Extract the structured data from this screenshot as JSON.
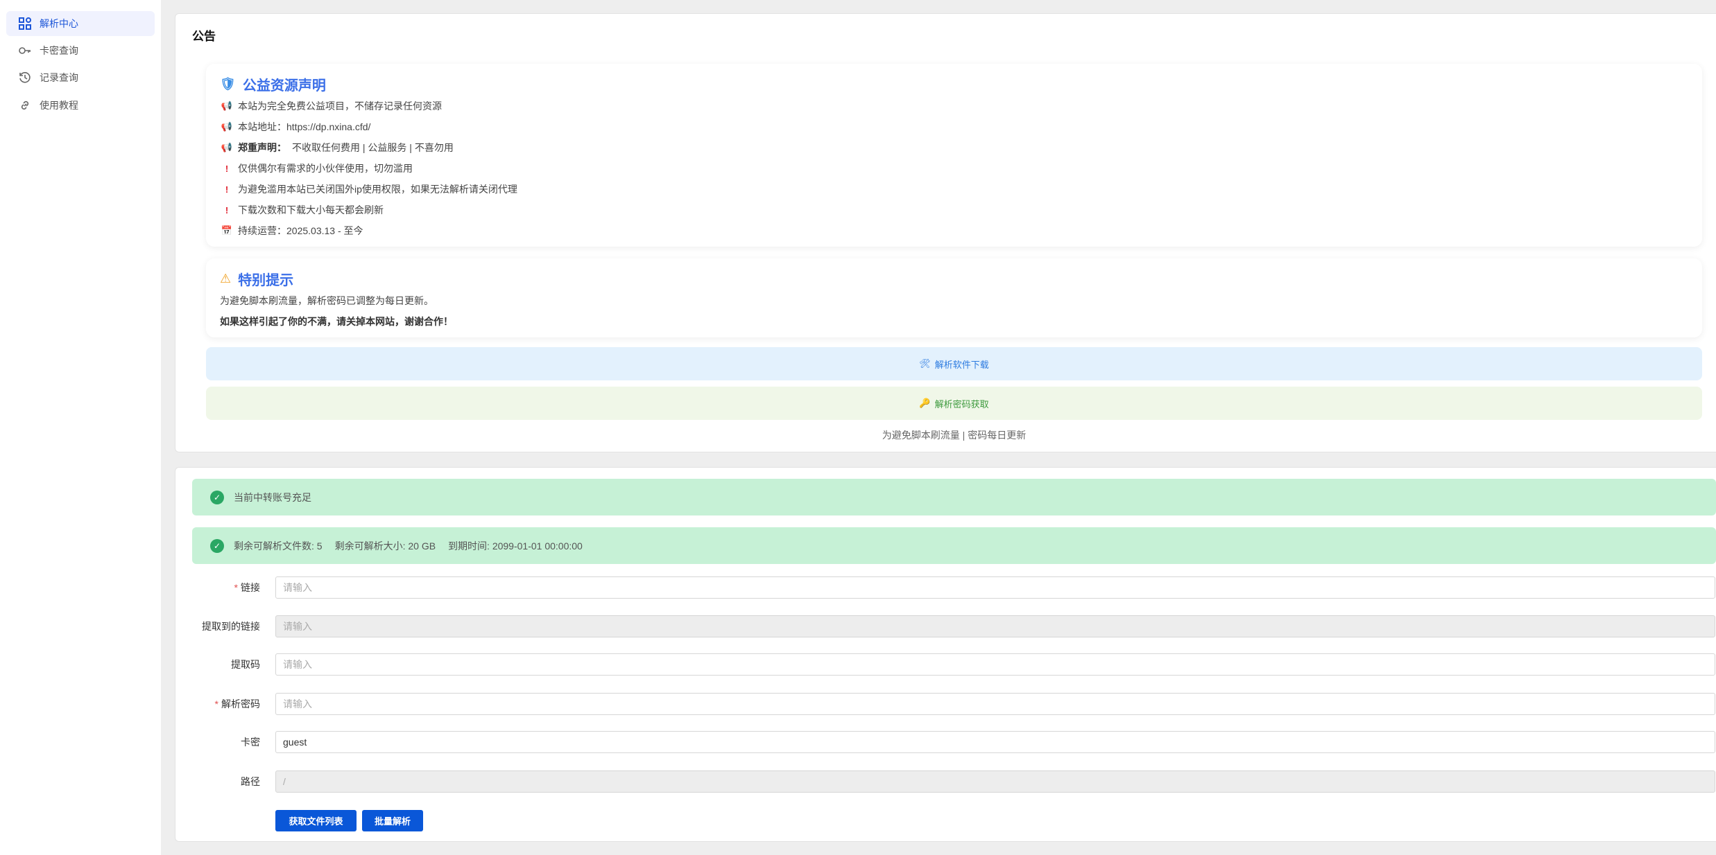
{
  "sidebar": {
    "items": [
      {
        "label": "解析中心",
        "icon": "grid-icon",
        "active": true
      },
      {
        "label": "卡密查询",
        "icon": "key-icon"
      },
      {
        "label": "记录查询",
        "icon": "history-icon"
      },
      {
        "label": "使用教程",
        "icon": "link-icon"
      }
    ]
  },
  "announcement": {
    "title": "公告",
    "notice": {
      "heading": "公益资源声明",
      "lines": [
        {
          "icon": "megaphone-icon",
          "text": "本站为完全免费公益项目，不储存记录任何资源"
        },
        {
          "icon": "megaphone-icon",
          "text": "本站地址：https://dp.nxina.cfd/"
        },
        {
          "icon": "megaphone-icon",
          "bold": "郑重声明：",
          "text": "不收取任何费用 | 公益服务 | 不喜勿用"
        },
        {
          "icon": "exclamation-icon",
          "text": "仅供偶尔有需求的小伙伴使用，切勿滥用"
        },
        {
          "icon": "exclamation-icon",
          "text": "为避免滥用本站已关闭国外ip使用权限，如果无法解析请关闭代理"
        },
        {
          "icon": "exclamation-icon",
          "text": "下载次数和下载大小每天都会刷新"
        },
        {
          "icon": "calendar-icon",
          "text": "持续运营：2025.03.13 - 至今"
        }
      ]
    },
    "special": {
      "heading": "特别提示",
      "line1": "为避免脚本刷流量，解析密码已调整为每日更新。",
      "line2": "如果这样引起了你的不满，请关掉本网站，谢谢合作！"
    },
    "download_button": "解析软件下载",
    "password_button": "解析密码获取",
    "footnote": "为避免脚本刷流量 | 密码每日更新"
  },
  "status": {
    "alert1": "当前中转账号充足",
    "remaining_files": "剩余可解析文件数: 5",
    "remaining_size": "剩余可解析大小: 20 GB",
    "expiry": "到期时间: 2099-01-01 00:00:00"
  },
  "form": {
    "fields": [
      {
        "label": "链接",
        "required": true,
        "placeholder": "请输入",
        "value": ""
      },
      {
        "label": "提取到的链接",
        "disabled": true,
        "placeholder": "请输入",
        "value": ""
      },
      {
        "label": "提取码",
        "placeholder": "请输入",
        "value": ""
      },
      {
        "label": "解析密码",
        "required": true,
        "placeholder": "请输入",
        "value": ""
      },
      {
        "label": "卡密",
        "placeholder": "请输入",
        "value": "guest"
      },
      {
        "label": "路径",
        "disabled": true,
        "placeholder": "",
        "value": "/"
      }
    ],
    "get_list_button": "获取文件列表",
    "batch_button": "批量解析"
  },
  "colors": {
    "primary": "#0a57d8",
    "heading": "#3b6fe8",
    "success_bg": "#c6f1d6",
    "info_bg": "#e3f1fd",
    "green_bg": "#f0f7e8"
  }
}
